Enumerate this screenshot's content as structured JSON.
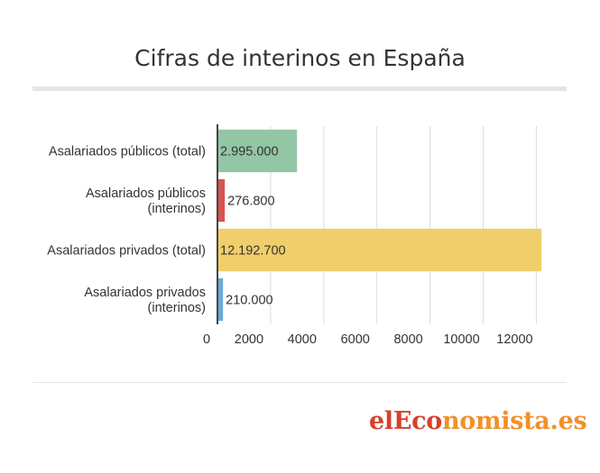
{
  "chart_data": {
    "type": "bar",
    "orientation": "horizontal",
    "title": "Cifras de interinos en España",
    "categories": [
      [
        "Asalariados públicos (total)"
      ],
      [
        "Asalariados públicos",
        "(interinos)"
      ],
      [
        "Asalariados privados (total)"
      ],
      [
        "Asalariados privados",
        "(interinos)"
      ]
    ],
    "values": [
      2995,
      276.8,
      12192.7,
      210
    ],
    "value_labels": [
      "2.995.000",
      "276.800",
      "12.192.700",
      "210.000"
    ],
    "colors": [
      "#93c6a5",
      "#d9534f",
      "#f0cf6a",
      "#6aaad8"
    ],
    "xlim": [
      0,
      12800
    ],
    "xticks": [
      0,
      2000,
      4000,
      6000,
      8000,
      10000,
      12000
    ],
    "xlabel": "",
    "ylabel": "",
    "grid": "vertical",
    "legend": "none"
  },
  "brand": {
    "logo_part1": "elEco",
    "logo_part2": "nomista.es"
  }
}
